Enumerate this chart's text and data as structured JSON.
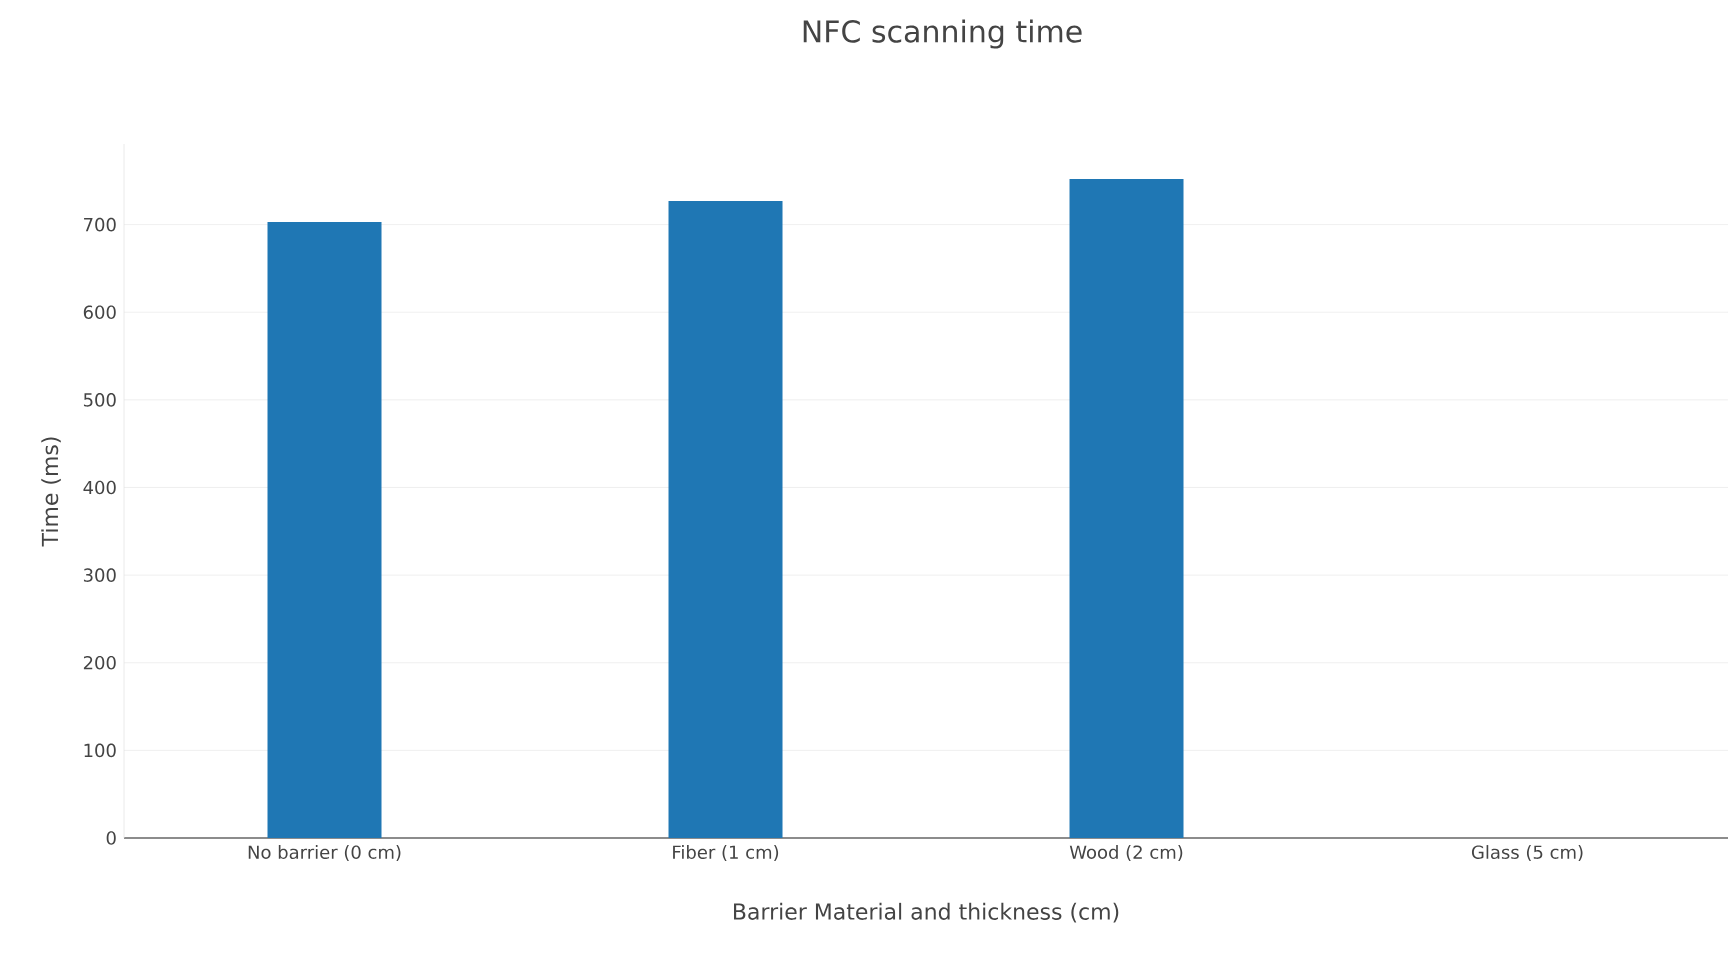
{
  "chart_data": {
    "type": "bar",
    "title": "NFC scanning time",
    "xlabel": "Barrier Material and thickness (cm)",
    "ylabel": "Time (ms)",
    "categories": [
      "No barrier (0 cm)",
      "Fiber (1 cm)",
      "Wood (2 cm)",
      "Glass (5 cm)"
    ],
    "values": [
      703,
      727,
      752,
      null
    ],
    "color": "#1f77b4",
    "ylim": [
      0,
      792
    ],
    "yticks": [
      0,
      100,
      200,
      300,
      400,
      500,
      600,
      700
    ],
    "grid": "y"
  }
}
